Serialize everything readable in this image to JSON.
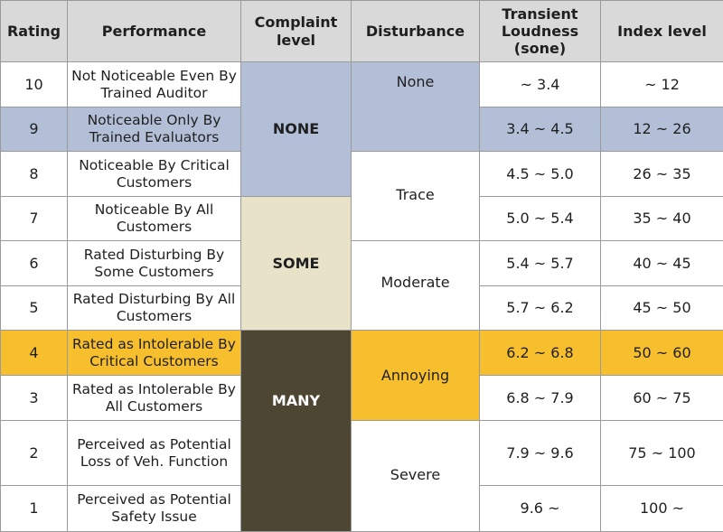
{
  "headers": {
    "rating": "Rating",
    "performance": "Performance",
    "complaint": "Complaint\nlevel",
    "disturbance": "Disturbance",
    "loudness": "Transient\nLoudness\n(sone)",
    "index": "Index level"
  },
  "rows": [
    {
      "rating": "10",
      "performance": "Not Noticeable Even By Trained Auditor",
      "loudness": "~ 3.4",
      "index": "~ 12"
    },
    {
      "rating": "9",
      "performance": "Noticeable Only By Trained Evaluators",
      "loudness": "3.4 ~ 4.5",
      "index": "12 ~ 26"
    },
    {
      "rating": "8",
      "performance": "Noticeable By Critical Customers",
      "loudness": "4.5 ~ 5.0",
      "index": "26 ~ 35"
    },
    {
      "rating": "7",
      "performance": "Noticeable By All Customers",
      "loudness": "5.0 ~ 5.4",
      "index": "35 ~ 40"
    },
    {
      "rating": "6",
      "performance": "Rated Disturbing By Some Customers",
      "loudness": "5.4 ~ 5.7",
      "index": "40 ~ 45"
    },
    {
      "rating": "5",
      "performance": "Rated Disturbing By All Customers",
      "loudness": "5.7 ~ 6.2",
      "index": "45 ~ 50"
    },
    {
      "rating": "4",
      "performance": "Rated as Intolerable By Critical Customers",
      "loudness": "6.2 ~ 6.8",
      "index": "50 ~ 60"
    },
    {
      "rating": "3",
      "performance": "Rated as Intolerable By All Customers",
      "loudness": "6.8 ~ 7.9",
      "index": "60 ~ 75"
    },
    {
      "rating": "2",
      "performance": "Perceived as Potential Loss of Veh. Function",
      "loudness": "7.9 ~ 9.6",
      "index": "75 ~ 100"
    },
    {
      "rating": "1",
      "performance": "Perceived as Potential Safety Issue",
      "loudness": "9.6 ~",
      "index": "100 ~"
    }
  ],
  "complaint_levels": [
    "NONE",
    "SOME",
    "MANY"
  ],
  "disturbance_levels": [
    "None",
    "Trace",
    "Moderate",
    "Annoying",
    "Severe"
  ],
  "colors": {
    "header_bg": "#d9d9d9",
    "highlight_blue": "#b3bfd7",
    "highlight_yellow": "#f7bf2d",
    "some_bg": "#e8e2c9",
    "many_bg": "#4c4632"
  }
}
